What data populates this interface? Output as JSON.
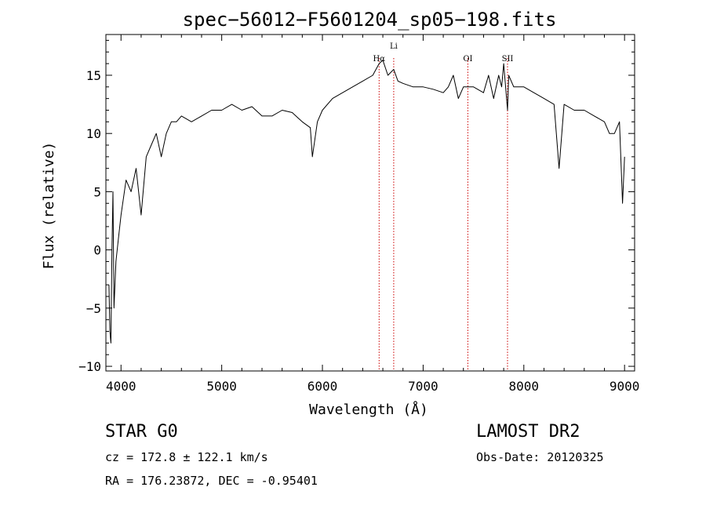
{
  "chart_data": {
    "type": "line",
    "title": "spec−56012−F5601204_sp05−198.fits",
    "xlabel": "Wavelength (Å)",
    "ylabel": "Flux (relative)",
    "xlim": [
      3850,
      9100
    ],
    "ylim": [
      -10.4,
      18.5
    ],
    "x_ticks": [
      4000,
      5000,
      6000,
      7000,
      8000,
      9000
    ],
    "y_ticks": [
      -10,
      -5,
      0,
      5,
      10,
      15
    ],
    "grid": false,
    "lines": [
      {
        "label": "Hα",
        "x": 6563
      },
      {
        "label": "Li",
        "x": 6708
      },
      {
        "label": "OI",
        "x": 7444
      },
      {
        "label": "SII",
        "x": 7838
      }
    ],
    "line_color": "#cc0000",
    "series": [
      {
        "x": [
          3880,
          3890,
          3900,
          3910,
          3920,
          3930,
          3950,
          3975,
          4000,
          4050,
          4100,
          4150,
          4200,
          4250,
          4300,
          4350,
          4400,
          4450,
          4500,
          4550,
          4600,
          4700,
          4800,
          4900,
          5000,
          5100,
          5200,
          5300,
          5400,
          5500,
          5600,
          5700,
          5800,
          5880,
          5900,
          5950,
          6000,
          6100,
          6200,
          6300,
          6400,
          6500,
          6563,
          6600,
          6650,
          6708,
          6750,
          6800,
          6900,
          7000,
          7100,
          7200,
          7250,
          7300,
          7350,
          7400,
          7444,
          7500,
          7600,
          7650,
          7700,
          7750,
          7780,
          7800,
          7838,
          7850,
          7900,
          8000,
          8100,
          8200,
          8300,
          8350,
          8400,
          8500,
          8600,
          8700,
          8800,
          8850,
          8900,
          8950,
          8980,
          9000
        ],
        "values": [
          -3,
          -7,
          -8,
          0,
          5,
          -5,
          -1,
          1,
          3,
          6,
          5,
          7,
          3,
          8,
          9,
          10,
          8,
          10,
          11,
          11,
          11.5,
          11,
          11.5,
          12,
          12,
          12.5,
          12,
          12.3,
          11.5,
          11.5,
          12,
          11.8,
          11,
          10.5,
          8,
          11,
          12,
          13,
          13.5,
          14,
          14.5,
          15,
          16,
          16.3,
          15,
          15.5,
          14.5,
          14.3,
          14,
          14,
          13.8,
          13.5,
          14,
          15,
          13,
          14,
          14,
          14,
          13.5,
          15,
          13,
          15,
          14,
          16,
          12,
          15,
          14,
          14,
          13.5,
          13,
          12.5,
          7,
          12.5,
          12,
          12,
          11.5,
          11,
          10,
          10,
          11,
          4,
          8
        ]
      }
    ]
  },
  "info": {
    "class_line": "STAR    G0",
    "survey": "LAMOST DR2",
    "cz_line": "cz = 172.8 ± 122.1 km/s",
    "obs_date": "Obs-Date: 20120325",
    "radec_line": "RA = 176.23872, DEC =  -0.95401"
  }
}
